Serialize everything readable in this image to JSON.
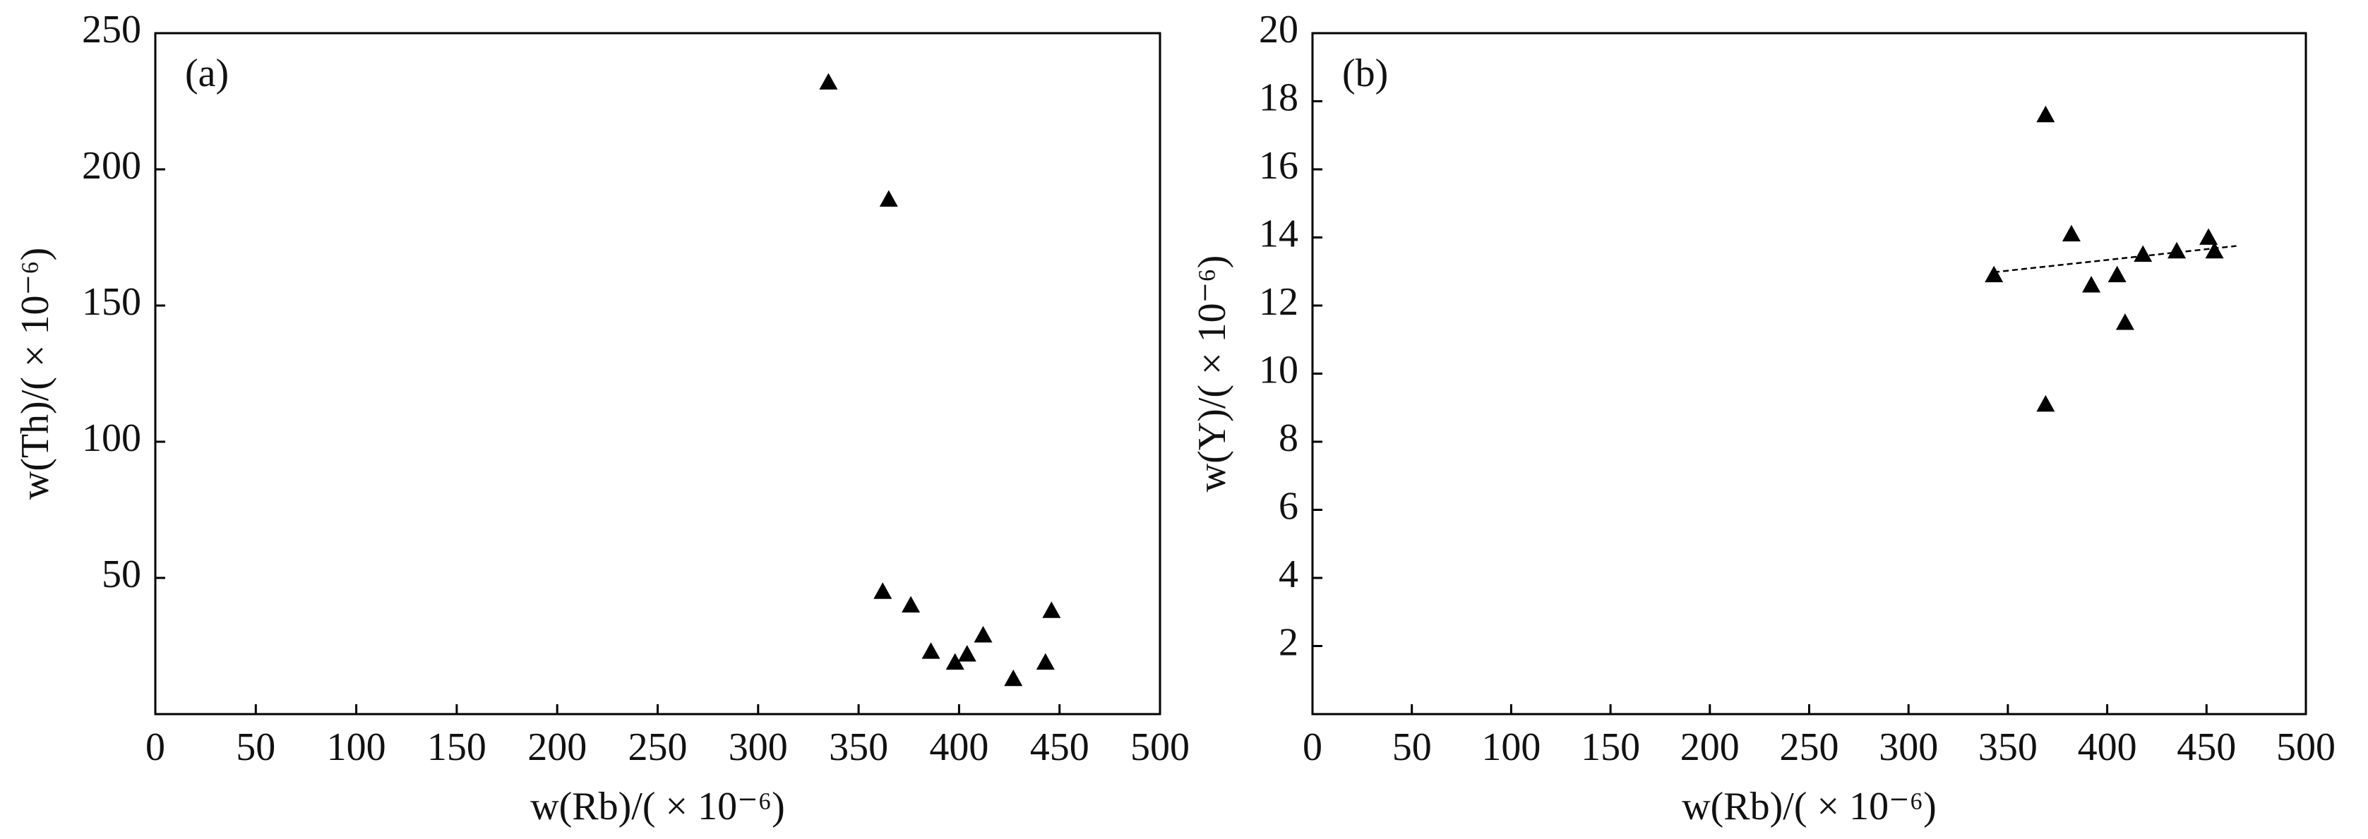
{
  "chart_data": [
    {
      "type": "scatter",
      "panel_label": "(a)",
      "x_label": "w(Rb)/( × 10⁻⁶)",
      "y_label": "w(Th)/( × 10⁻⁶)",
      "x": [
        335,
        365,
        362,
        376,
        386,
        398,
        404,
        412,
        427,
        443,
        446
      ],
      "y": [
        232,
        189,
        45,
        40,
        23,
        19,
        22,
        29,
        13,
        19,
        38
      ],
      "color": "#000000",
      "marker": "triangle",
      "xlim": [
        0,
        500
      ],
      "xticks": [
        0,
        50,
        100,
        150,
        200,
        250,
        300,
        350,
        400,
        450,
        500
      ],
      "ylim": [
        0,
        250
      ],
      "yticks": [
        50,
        100,
        150,
        200,
        250
      ]
    },
    {
      "type": "scatter",
      "panel_label": "(b)",
      "x_label": "w(Rb)/( × 10⁻⁶)",
      "y_label": "w(Y)/( × 10⁻⁶)",
      "x": [
        343,
        369,
        369,
        382,
        392,
        405,
        409,
        418,
        435,
        451,
        454
      ],
      "y": [
        12.9,
        17.6,
        9.1,
        14.1,
        12.6,
        12.9,
        11.5,
        13.5,
        13.6,
        14.0,
        13.6
      ],
      "color": "#000000",
      "marker": "triangle",
      "trendline": {
        "x": [
          343,
          465
        ],
        "y": [
          12.98,
          13.75
        ]
      },
      "xlim": [
        0,
        500
      ],
      "xticks": [
        0,
        50,
        100,
        150,
        200,
        250,
        300,
        350,
        400,
        450,
        500
      ],
      "ylim": [
        0,
        20
      ],
      "yticks": [
        2,
        4,
        6,
        8,
        10,
        12,
        14,
        16,
        18,
        20
      ]
    }
  ]
}
